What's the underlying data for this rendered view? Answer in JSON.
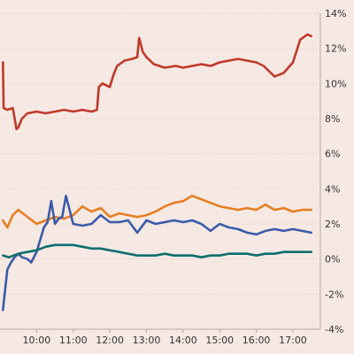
{
  "chart_data": {
    "type": "line",
    "title": "",
    "xlabel": "",
    "ylabel": "",
    "x_unit": "time of day",
    "y_unit": "percent",
    "xlim": [
      9.0,
      17.75
    ],
    "ylim": [
      -4,
      14
    ],
    "y_ticks": [
      -4,
      -2,
      0,
      2,
      4,
      6,
      8,
      10,
      12,
      14
    ],
    "y_tick_labels": [
      "-4%",
      "-2%",
      "0%",
      "2%",
      "4%",
      "6%",
      "8%",
      "10%",
      "12%",
      "14%"
    ],
    "x_ticks": [
      10,
      11,
      12,
      13,
      14,
      15,
      16,
      17
    ],
    "x_tick_labels": [
      "10:00",
      "11:00",
      "12:00",
      "13:00",
      "14:00",
      "15:00",
      "16:00",
      "17:00"
    ],
    "y_axis_position": "right",
    "grid": "horizontal dotted",
    "legend": "none",
    "series": [
      {
        "color": "#c0392b",
        "x": [
          9.08,
          9.1,
          9.2,
          9.35,
          9.45,
          9.5,
          9.6,
          9.75,
          10.0,
          10.25,
          10.5,
          10.75,
          11.0,
          11.25,
          11.5,
          11.65,
          11.7,
          11.8,
          12.0,
          12.1,
          12.2,
          12.4,
          12.6,
          12.75,
          12.8,
          12.9,
          13.0,
          13.2,
          13.5,
          13.8,
          14.0,
          14.25,
          14.5,
          14.75,
          15.0,
          15.25,
          15.5,
          15.75,
          16.0,
          16.2,
          16.4,
          16.5,
          16.75,
          17.0,
          17.2,
          17.4,
          17.5
        ],
        "y": [
          11.2,
          8.6,
          8.5,
          8.6,
          7.4,
          7.5,
          8.0,
          8.3,
          8.4,
          8.3,
          8.4,
          8.5,
          8.4,
          8.5,
          8.4,
          8.5,
          9.8,
          10.0,
          9.8,
          10.5,
          11.0,
          11.3,
          11.4,
          11.5,
          12.6,
          11.8,
          11.5,
          11.1,
          10.9,
          11.0,
          10.9,
          11.0,
          11.1,
          11.0,
          11.2,
          11.3,
          11.4,
          11.3,
          11.2,
          11.0,
          10.6,
          10.4,
          10.6,
          11.2,
          12.5,
          12.8,
          12.7
        ]
      },
      {
        "color": "#e67e22",
        "x": [
          9.08,
          9.2,
          9.35,
          9.5,
          9.75,
          10.0,
          10.25,
          10.5,
          10.75,
          11.0,
          11.25,
          11.5,
          11.75,
          12.0,
          12.25,
          12.5,
          12.75,
          13.0,
          13.25,
          13.5,
          13.75,
          14.0,
          14.25,
          14.5,
          14.75,
          15.0,
          15.25,
          15.5,
          15.75,
          16.0,
          16.25,
          16.5,
          16.75,
          17.0,
          17.25,
          17.5
        ],
        "y": [
          2.2,
          1.8,
          2.5,
          2.8,
          2.4,
          2.0,
          2.2,
          2.4,
          2.3,
          2.5,
          3.0,
          2.7,
          2.9,
          2.4,
          2.6,
          2.5,
          2.4,
          2.5,
          2.7,
          3.0,
          3.2,
          3.3,
          3.6,
          3.4,
          3.2,
          3.0,
          2.9,
          2.8,
          2.9,
          2.8,
          3.1,
          2.8,
          2.9,
          2.7,
          2.8,
          2.8
        ]
      },
      {
        "color": "#3a5ba9",
        "x": [
          9.08,
          9.2,
          9.3,
          9.4,
          9.5,
          9.6,
          9.75,
          9.85,
          10.0,
          10.2,
          10.3,
          10.4,
          10.5,
          10.6,
          10.7,
          10.8,
          10.9,
          11.0,
          11.25,
          11.5,
          11.75,
          12.0,
          12.25,
          12.5,
          12.75,
          13.0,
          13.25,
          13.5,
          13.75,
          14.0,
          14.25,
          14.5,
          14.75,
          15.0,
          15.25,
          15.5,
          15.75,
          16.0,
          16.25,
          16.5,
          16.75,
          17.0,
          17.25,
          17.5
        ],
        "y": [
          -2.9,
          -0.6,
          -0.2,
          0.1,
          0.3,
          0.1,
          0.0,
          -0.2,
          0.4,
          1.8,
          2.1,
          3.3,
          2.0,
          2.3,
          2.4,
          3.6,
          2.8,
          2.0,
          1.9,
          2.0,
          2.5,
          2.1,
          2.1,
          2.2,
          1.5,
          2.2,
          2.0,
          2.1,
          2.2,
          2.1,
          2.2,
          2.0,
          1.6,
          2.0,
          1.8,
          1.7,
          1.5,
          1.4,
          1.6,
          1.7,
          1.6,
          1.7,
          1.6,
          1.5
        ]
      },
      {
        "color": "#0f6e6e",
        "x": [
          9.08,
          9.25,
          9.5,
          9.75,
          10.0,
          10.25,
          10.5,
          10.75,
          11.0,
          11.25,
          11.5,
          11.75,
          12.0,
          12.25,
          12.5,
          12.75,
          13.0,
          13.25,
          13.5,
          13.75,
          14.0,
          14.25,
          14.5,
          14.75,
          15.0,
          15.25,
          15.5,
          15.75,
          16.0,
          16.25,
          16.5,
          16.75,
          17.0,
          17.25,
          17.5
        ],
        "y": [
          0.2,
          0.1,
          0.3,
          0.4,
          0.5,
          0.7,
          0.8,
          0.8,
          0.8,
          0.7,
          0.6,
          0.6,
          0.5,
          0.4,
          0.3,
          0.2,
          0.2,
          0.2,
          0.3,
          0.2,
          0.2,
          0.2,
          0.1,
          0.2,
          0.2,
          0.3,
          0.3,
          0.3,
          0.2,
          0.3,
          0.3,
          0.4,
          0.4,
          0.4,
          0.4
        ]
      }
    ]
  }
}
